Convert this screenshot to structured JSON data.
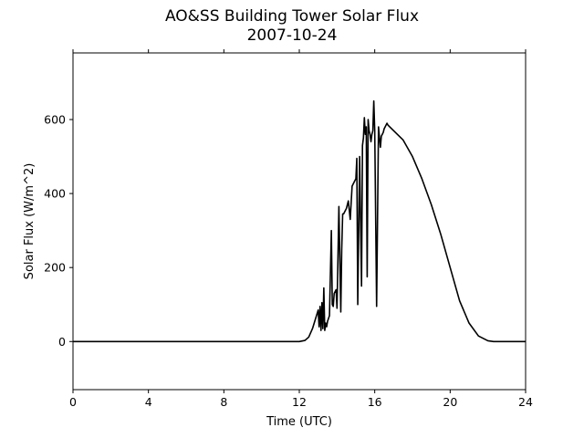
{
  "chart_data": {
    "type": "line",
    "title": "AO&SS Building Tower Solar Flux",
    "subtitle": "2007-10-24",
    "xlabel": "Time (UTC)",
    "ylabel": "Solar Flux (W/m^2)",
    "xlim": [
      0,
      24
    ],
    "ylim": [
      -130,
      780
    ],
    "xticks": [
      0,
      4,
      8,
      12,
      16,
      20,
      24
    ],
    "yticks": [
      0,
      200,
      400,
      600
    ],
    "grid": false,
    "line_color": "#000000",
    "series": [
      {
        "x": [
          0,
          4,
          8,
          12,
          12.3,
          12.5,
          12.7,
          12.85,
          13.0,
          13.05,
          13.1,
          13.15,
          13.2,
          13.25,
          13.3,
          13.35,
          13.4,
          13.45,
          13.5,
          13.6,
          13.7,
          13.75,
          13.8,
          13.85,
          13.95,
          14.0,
          14.1,
          14.2,
          14.25,
          14.3,
          14.35,
          14.4,
          14.45,
          14.5,
          14.55,
          14.6,
          14.7,
          14.8,
          14.9,
          15.0,
          15.05,
          15.1,
          15.2,
          15.3,
          15.35,
          15.4,
          15.45,
          15.5,
          15.55,
          15.6,
          15.65,
          15.7,
          15.75,
          15.8,
          15.85,
          15.9,
          15.95,
          16.0,
          16.1,
          16.2,
          16.3,
          16.35,
          16.4,
          16.45,
          16.5,
          16.55,
          16.6,
          16.65,
          16.7,
          17.0,
          17.5,
          18.0,
          18.5,
          19.0,
          19.5,
          20.0,
          20.5,
          21.0,
          21.5,
          22.0,
          22.3,
          22.5,
          22.7,
          22.9,
          23.1,
          23.3,
          23.6,
          24.0
        ],
        "y": [
          0,
          0,
          0,
          0,
          3,
          12,
          35,
          60,
          85,
          40,
          95,
          30,
          105,
          35,
          145,
          30,
          50,
          40,
          55,
          70,
          300,
          100,
          95,
          130,
          140,
          90,
          365,
          80,
          250,
          345,
          345,
          350,
          355,
          360,
          370,
          380,
          330,
          420,
          430,
          440,
          495,
          100,
          500,
          150,
          530,
          550,
          605,
          560,
          580,
          175,
          600,
          570,
          560,
          540,
          560,
          570,
          650,
          570,
          95,
          580,
          525,
          555,
          560,
          565,
          575,
          580,
          585,
          590,
          585,
          570,
          545,
          500,
          440,
          370,
          290,
          200,
          110,
          50,
          15,
          2,
          0,
          0,
          0,
          0,
          0,
          0,
          0,
          0
        ]
      }
    ]
  }
}
